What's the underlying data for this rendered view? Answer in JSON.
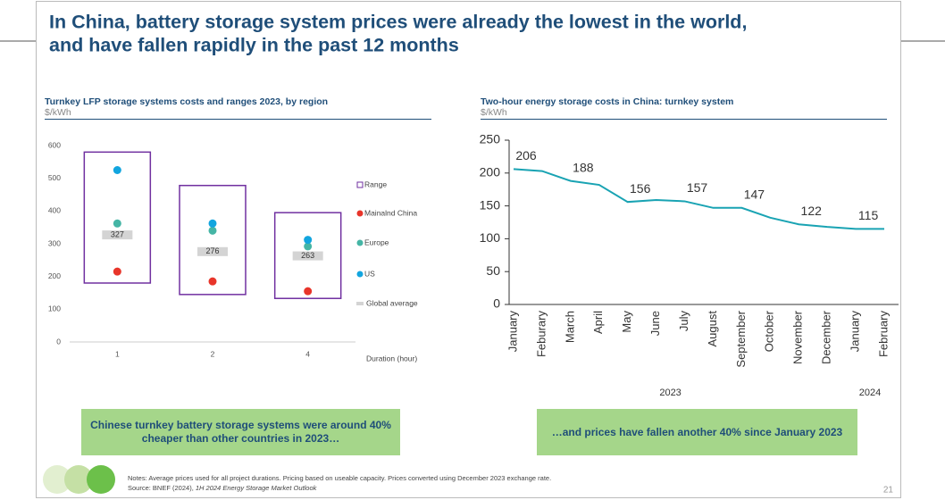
{
  "title": [
    "In China, battery storage system prices were already the lowest in the world,",
    "and have fallen rapidly in the past 12 months"
  ],
  "chart_data": [
    {
      "type": "range",
      "title": "Turnkey LFP storage systems costs and ranges 2023, by region",
      "y_unit": "$/kWh",
      "x_label": "Duration (hour)",
      "categories": [
        "1",
        "2",
        "4"
      ],
      "ylim": [
        0,
        600
      ],
      "yticks": [
        0,
        100,
        200,
        300,
        400,
        500,
        600
      ],
      "range": {
        "name": "Range",
        "color": "#7030a0",
        "low": [
          180,
          145,
          133
        ],
        "high": [
          580,
          478,
          395
        ]
      },
      "series": [
        {
          "name": "Mainalnd China",
          "color": "#e8352a",
          "values": [
            215,
            185,
            155
          ]
        },
        {
          "name": "Europe",
          "color": "#45b5a5",
          "values": [
            362,
            340,
            292
          ]
        },
        {
          "name": "US",
          "color": "#12a5df",
          "values": [
            525,
            362,
            312
          ]
        }
      ],
      "average": {
        "name": "Global average",
        "color": "#d4d4d4",
        "values": [
          327,
          276,
          263
        ]
      }
    },
    {
      "type": "line",
      "title": "Two-hour energy storage costs in China: turnkey system",
      "y_unit": "$/kWh",
      "categories": [
        "January",
        "Feburary",
        "March",
        "April",
        "May",
        "June",
        "July",
        "August",
        "September",
        "October",
        "November",
        "December",
        "January",
        "February"
      ],
      "x_groups": [
        {
          "label": "2023",
          "span": 12
        },
        {
          "label": "2024",
          "span": 2
        }
      ],
      "ylim": [
        0,
        250
      ],
      "yticks": [
        0,
        50,
        100,
        150,
        200,
        250
      ],
      "color": "#19a3b3",
      "values": [
        206,
        203,
        188,
        182,
        156,
        159,
        157,
        147,
        147,
        132,
        122,
        118,
        115,
        115
      ],
      "value_labels": [
        "206",
        null,
        "188",
        null,
        "156",
        null,
        "157",
        null,
        "147",
        null,
        "122",
        null,
        "115",
        null
      ]
    }
  ],
  "callouts": [
    "Chinese turnkey battery storage systems were around 40% cheaper than other countries in 2023…",
    "…and prices have fallen another 40% since January 2023"
  ],
  "notes": "Notes: Average prices used for all project durations. Pricing based on useable capacity. Prices converted using December 2023 exchange rate.",
  "source": [
    "Source: BNEF (2024), ",
    "1H 2024 Energy Storage Market Outlook"
  ],
  "page_number": "21"
}
